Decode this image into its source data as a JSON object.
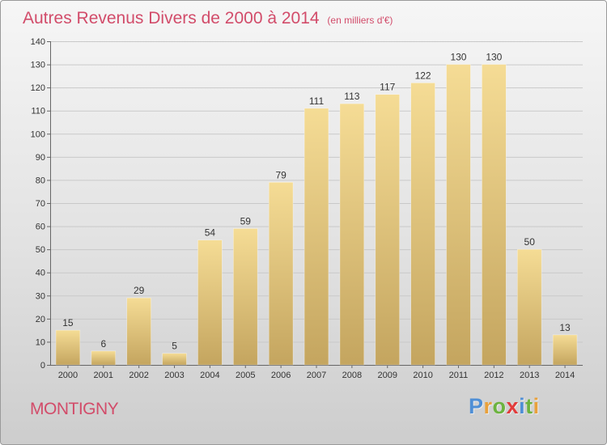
{
  "chart_data": {
    "type": "bar",
    "title": "Autres Revenus Divers de 2000 à 2014",
    "subtitle": "(en milliers d'€)",
    "categories": [
      "2000",
      "2001",
      "2002",
      "2003",
      "2004",
      "2005",
      "2006",
      "2007",
      "2008",
      "2009",
      "2010",
      "2011",
      "2012",
      "2013",
      "2014"
    ],
    "values": [
      15,
      6,
      29,
      5,
      54,
      59,
      79,
      111,
      113,
      117,
      122,
      130,
      130,
      50,
      13
    ],
    "data_labels": [
      "15",
      "6",
      "29",
      "5",
      "54",
      "59",
      "79",
      "111",
      "113",
      "117",
      "122",
      "130",
      "130",
      "50",
      "13"
    ],
    "yticks": [
      "0",
      "10",
      "20",
      "30",
      "40",
      "50",
      "60",
      "70",
      "80",
      "90",
      "100",
      "110",
      "120",
      "130",
      "140"
    ],
    "ylim": [
      0,
      140
    ],
    "grid": true,
    "bar_color": "#e8c97a",
    "title_color": "#d24c6a"
  },
  "footer": {
    "place": "MONTIGNY",
    "logo_letters": [
      {
        "ch": "P",
        "color": "#4f8fd6"
      },
      {
        "ch": "r",
        "color": "#e9a13b"
      },
      {
        "ch": "o",
        "color": "#6cb33f"
      },
      {
        "ch": "x",
        "color": "#e23b3b"
      },
      {
        "ch": "i",
        "color": "#4f8fd6"
      },
      {
        "ch": "t",
        "color": "#6cb33f"
      },
      {
        "ch": "i",
        "color": "#e9a13b"
      }
    ]
  }
}
